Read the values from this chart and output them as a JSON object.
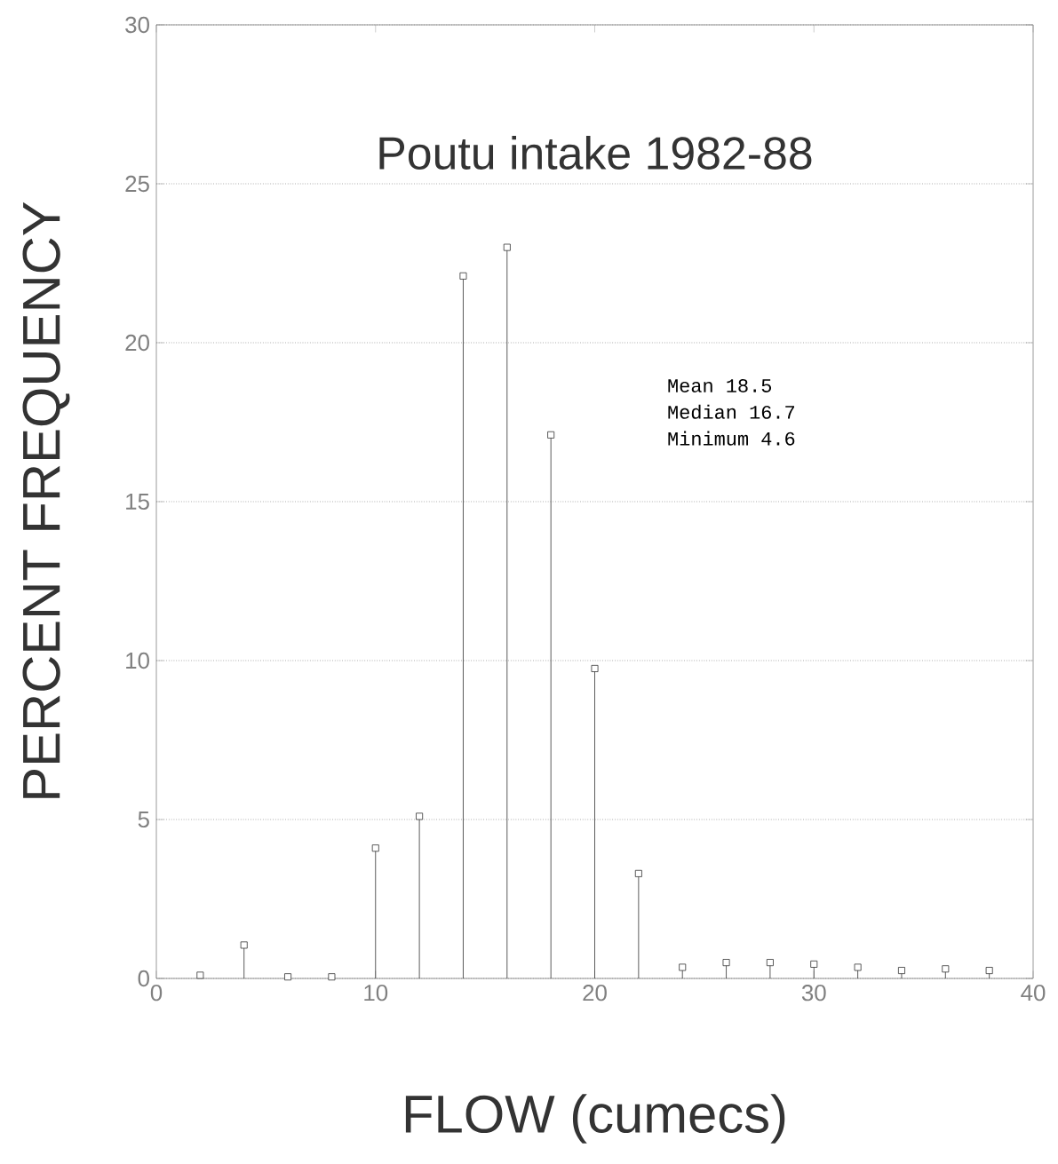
{
  "chart_data": {
    "type": "lollipop",
    "title": "Poutu intake 1982-88",
    "xlabel": "FLOW  (cumecs)",
    "ylabel": "PERCENT FREQUENCY",
    "x": [
      2,
      4,
      6,
      8,
      10,
      12,
      14,
      16,
      18,
      20,
      22,
      24,
      26,
      28,
      30,
      32,
      34,
      36,
      38
    ],
    "values": [
      0.1,
      1.05,
      0.05,
      0.05,
      4.1,
      5.1,
      22.1,
      23.0,
      17.1,
      9.75,
      3.3,
      0.35,
      0.5,
      0.5,
      0.45,
      0.35,
      0.25,
      0.3,
      0.25
    ],
    "color": "#333333",
    "marker": "square",
    "grid": "y",
    "xlim": [
      0,
      40
    ],
    "ylim": [
      0,
      30
    ],
    "xticks": [
      0,
      10,
      20,
      30,
      40
    ],
    "yticks": [
      0,
      5,
      10,
      15,
      20,
      25,
      30
    ],
    "annotations": [
      "Mean 18.5",
      "Median 16.7",
      "Minimum 4.6"
    ]
  }
}
